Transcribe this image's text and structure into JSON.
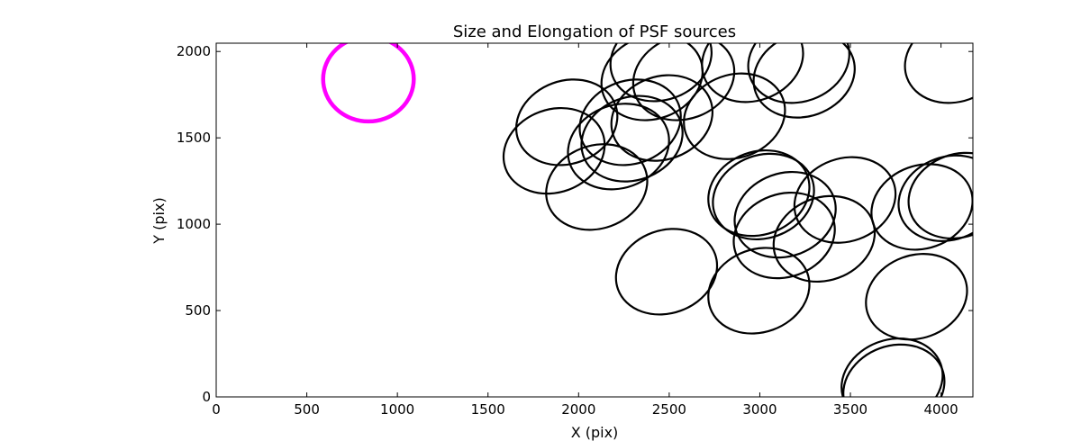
{
  "chart_data": {
    "type": "scatter",
    "title": "Size and Elongation of PSF sources",
    "xlabel": "X (pix)",
    "ylabel": "Y (pix)",
    "xlim": [
      0,
      4176
    ],
    "ylim": [
      0,
      2048
    ],
    "xticks": [
      0,
      500,
      1000,
      1500,
      2000,
      2500,
      3000,
      3500,
      4000
    ],
    "yticks": [
      0,
      500,
      1000,
      1500,
      2000
    ],
    "grid": false,
    "colors": {
      "source": "#000000",
      "reference": "#ff00ff"
    },
    "reference": {
      "x": 840,
      "y": 1840,
      "a": 250,
      "b": 245,
      "angle": 0
    },
    "sources": [
      {
        "x": 1935,
        "y": 1590,
        "a": 285,
        "b": 240,
        "angle": 20
      },
      {
        "x": 1865,
        "y": 1425,
        "a": 285,
        "b": 240,
        "angle": 20
      },
      {
        "x": 2100,
        "y": 1215,
        "a": 285,
        "b": 240,
        "angle": 20
      },
      {
        "x": 2220,
        "y": 1450,
        "a": 285,
        "b": 240,
        "angle": 20
      },
      {
        "x": 2285,
        "y": 1590,
        "a": 285,
        "b": 240,
        "angle": 20
      },
      {
        "x": 2295,
        "y": 1495,
        "a": 285,
        "b": 240,
        "angle": 20
      },
      {
        "x": 2460,
        "y": 1615,
        "a": 285,
        "b": 240,
        "angle": 20
      },
      {
        "x": 2405,
        "y": 1850,
        "a": 285,
        "b": 240,
        "angle": 20
      },
      {
        "x": 2580,
        "y": 1850,
        "a": 285,
        "b": 240,
        "angle": 20
      },
      {
        "x": 2455,
        "y": 1960,
        "a": 285,
        "b": 240,
        "angle": 20
      },
      {
        "x": 2860,
        "y": 1625,
        "a": 285,
        "b": 240,
        "angle": 20
      },
      {
        "x": 2960,
        "y": 1955,
        "a": 285,
        "b": 240,
        "angle": 20
      },
      {
        "x": 3215,
        "y": 1950,
        "a": 285,
        "b": 240,
        "angle": 20
      },
      {
        "x": 3245,
        "y": 1865,
        "a": 285,
        "b": 240,
        "angle": 20
      },
      {
        "x": 2485,
        "y": 725,
        "a": 285,
        "b": 240,
        "angle": 20
      },
      {
        "x": 2995,
        "y": 1180,
        "a": 285,
        "b": 240,
        "angle": 20
      },
      {
        "x": 3020,
        "y": 1160,
        "a": 285,
        "b": 240,
        "angle": 20
      },
      {
        "x": 3140,
        "y": 1055,
        "a": 285,
        "b": 240,
        "angle": 20
      },
      {
        "x": 3135,
        "y": 935,
        "a": 285,
        "b": 240,
        "angle": 20
      },
      {
        "x": 3355,
        "y": 915,
        "a": 285,
        "b": 240,
        "angle": 20
      },
      {
        "x": 3470,
        "y": 1140,
        "a": 285,
        "b": 240,
        "angle": 20
      },
      {
        "x": 2995,
        "y": 615,
        "a": 285,
        "b": 240,
        "angle": 20
      },
      {
        "x": 3865,
        "y": 580,
        "a": 285,
        "b": 240,
        "angle": 20
      },
      {
        "x": 3895,
        "y": 1100,
        "a": 285,
        "b": 240,
        "angle": 20
      },
      {
        "x": 4045,
        "y": 1150,
        "a": 285,
        "b": 240,
        "angle": 20
      },
      {
        "x": 4100,
        "y": 1165,
        "a": 285,
        "b": 240,
        "angle": 20
      },
      {
        "x": 3730,
        "y": 90,
        "a": 285,
        "b": 240,
        "angle": 20
      },
      {
        "x": 3740,
        "y": 55,
        "a": 285,
        "b": 240,
        "angle": 20
      },
      {
        "x": 4080,
        "y": 1950,
        "a": 285,
        "b": 240,
        "angle": 20
      }
    ]
  }
}
